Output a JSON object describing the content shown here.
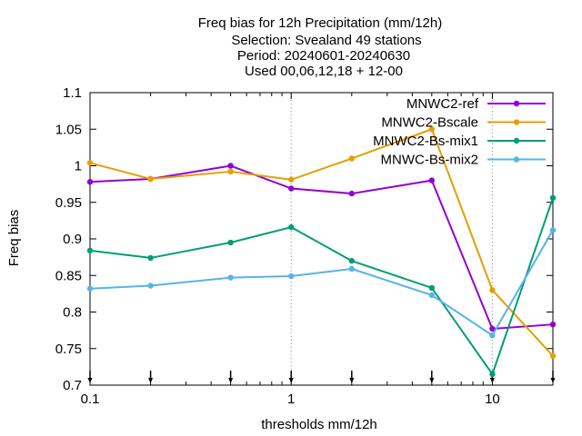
{
  "chart_data": {
    "type": "line",
    "title_lines": [
      "Freq bias  for 12h Precipitation (mm/12h)",
      "Selection: Svealand     49 stations",
      "Period: 20240601-20240630",
      "Used 00,06,12,18 + 12-00"
    ],
    "xlabel": "thresholds mm/12h",
    "ylabel": "Freq bias",
    "x_scale": "log",
    "xlim": [
      0.1,
      20
    ],
    "ylim": [
      0.7,
      1.1
    ],
    "x_ticks": [
      0.1,
      1,
      10
    ],
    "x_tick_labels": [
      "0.1",
      "1",
      "10"
    ],
    "y_ticks": [
      0.7,
      0.75,
      0.8,
      0.85,
      0.9,
      0.95,
      1.0,
      1.05,
      1.1
    ],
    "y_tick_labels": [
      "0.7",
      "0.75",
      "0.8",
      "0.85",
      "0.9",
      "0.95",
      "1",
      "1.05",
      "1.1"
    ],
    "grid": "vertical dotted lines at x = 1 and x = 10",
    "legend_position": "top-right",
    "threshold_markers": [
      0.1,
      0.2,
      0.5,
      1,
      2,
      5,
      10,
      20
    ],
    "x": [
      0.1,
      0.2,
      0.5,
      1,
      2,
      5,
      10,
      20
    ],
    "series": [
      {
        "name": "MNWC2-ref",
        "color": "#9400d3",
        "values": [
          0.978,
          0.982,
          1.0,
          0.969,
          0.962,
          0.98,
          0.777,
          0.783
        ]
      },
      {
        "name": "MNWC2-Bscale",
        "color": "#e69f00",
        "values": [
          1.004,
          0.982,
          0.992,
          0.981,
          1.01,
          1.05,
          0.83,
          0.74
        ]
      },
      {
        "name": "MNWC2-Bs-mix1",
        "color": "#009e73",
        "values": [
          0.884,
          0.874,
          0.895,
          0.916,
          0.87,
          0.833,
          0.715,
          0.956
        ]
      },
      {
        "name": "MNWC-Bs-mix2",
        "color": "#56b4e9",
        "values": [
          0.832,
          0.836,
          0.847,
          0.849,
          0.859,
          0.823,
          0.768,
          0.912
        ]
      }
    ]
  }
}
